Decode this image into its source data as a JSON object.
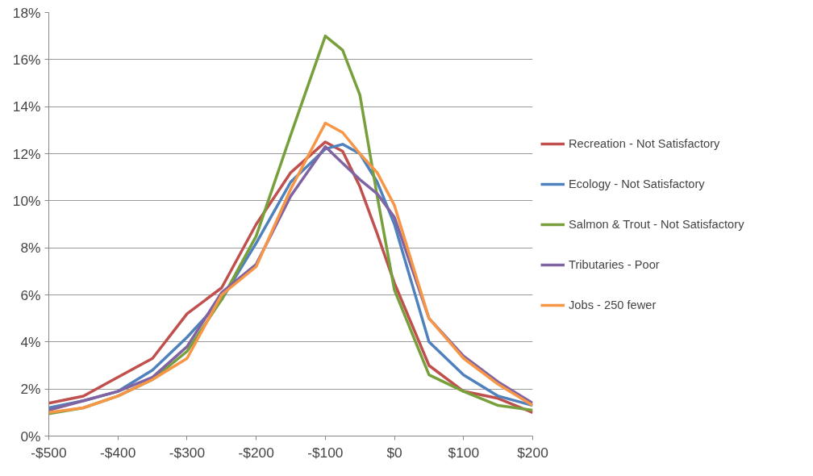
{
  "chart_data": {
    "type": "line",
    "x": [
      -500,
      -450,
      -400,
      -350,
      -300,
      -250,
      -200,
      -150,
      -100,
      -75,
      -50,
      -25,
      0,
      50,
      100,
      150,
      200
    ],
    "series": [
      {
        "name": "Recreation - Not Satisfactory",
        "color": "#c0504d",
        "values": [
          1.4,
          1.7,
          2.5,
          3.3,
          5.2,
          6.3,
          9.0,
          11.2,
          12.5,
          12.1,
          10.6,
          8.6,
          6.5,
          3.0,
          1.9,
          1.6,
          1.0
        ]
      },
      {
        "name": "Ecology - Not Satisfactory",
        "color": "#4f81bd",
        "values": [
          1.2,
          1.5,
          1.9,
          2.8,
          4.2,
          5.8,
          8.2,
          10.8,
          12.2,
          12.4,
          12.0,
          10.8,
          9.0,
          4.0,
          2.6,
          1.7,
          1.3
        ]
      },
      {
        "name": "Salmon & Trout - Not Satisfactory",
        "color": "#77a03c",
        "values": [
          0.95,
          1.2,
          1.7,
          2.4,
          3.6,
          5.8,
          8.5,
          12.8,
          17.0,
          16.4,
          14.5,
          10.2,
          6.2,
          2.6,
          1.9,
          1.3,
          1.1
        ]
      },
      {
        "name": "Tributaries - Poor",
        "color": "#8064a2",
        "values": [
          1.1,
          1.5,
          1.9,
          2.5,
          3.8,
          6.1,
          7.3,
          10.2,
          12.3,
          11.6,
          10.9,
          10.3,
          9.3,
          5.0,
          3.4,
          2.3,
          1.4
        ]
      },
      {
        "name": "Jobs - 250 fewer",
        "color": "#f79646",
        "values": [
          1.0,
          1.2,
          1.7,
          2.4,
          3.3,
          6.0,
          7.2,
          10.5,
          13.3,
          12.9,
          12.0,
          11.2,
          9.8,
          5.0,
          3.3,
          2.2,
          1.3
        ]
      }
    ],
    "xlim": [
      -500,
      200
    ],
    "ylim": [
      0,
      18
    ],
    "xticks": [
      {
        "value": -500,
        "label": "-$500"
      },
      {
        "value": -400,
        "label": "-$400"
      },
      {
        "value": -300,
        "label": "-$300"
      },
      {
        "value": -200,
        "label": "-$200"
      },
      {
        "value": -100,
        "label": "-$100"
      },
      {
        "value": 0,
        "label": "$0"
      },
      {
        "value": 100,
        "label": "$100"
      },
      {
        "value": 200,
        "label": "$200"
      }
    ],
    "yticks": [
      {
        "value": 0,
        "label": "0%"
      },
      {
        "value": 2,
        "label": "2%"
      },
      {
        "value": 4,
        "label": "4%"
      },
      {
        "value": 6,
        "label": "6%"
      },
      {
        "value": 8,
        "label": "8%"
      },
      {
        "value": 10,
        "label": "10%"
      },
      {
        "value": 12,
        "label": "12%"
      },
      {
        "value": 14,
        "label": "14%"
      },
      {
        "value": 16,
        "label": "16%"
      },
      {
        "value": 18,
        "label": "18%"
      }
    ],
    "grid": "y",
    "legend": "right",
    "line_style": "solid",
    "marker": "none"
  }
}
